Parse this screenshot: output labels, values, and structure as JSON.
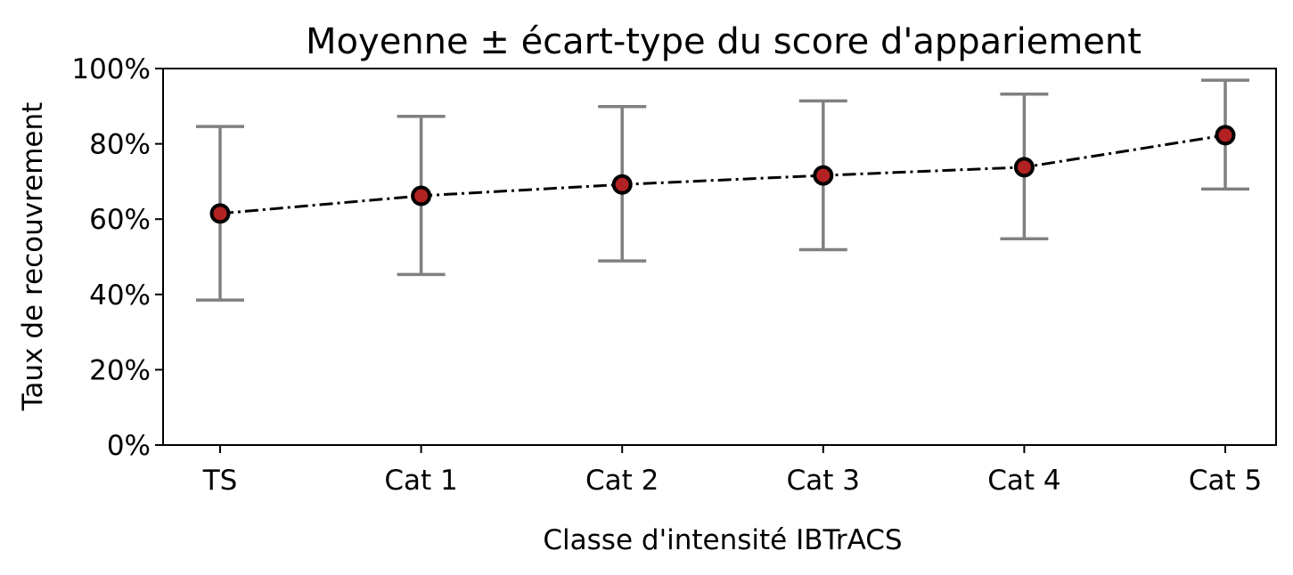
{
  "chart_data": {
    "type": "line",
    "title": "Moyenne ± écart-type du score d'appariement",
    "xlabel": "Classe d'intensité IBTrACS",
    "ylabel": "Taux de recouvrement",
    "categories": [
      "TS",
      "Cat 1",
      "Cat 2",
      "Cat 3",
      "Cat 4",
      "Cat 5"
    ],
    "series": [
      {
        "values": [
          0.615,
          0.662,
          0.692,
          0.716,
          0.738,
          0.823
        ],
        "error_lower": [
          0.385,
          0.453,
          0.489,
          0.519,
          0.548,
          0.68
        ],
        "error_upper": [
          0.846,
          0.873,
          0.899,
          0.914,
          0.932,
          0.969
        ]
      }
    ],
    "ylim": [
      0,
      1
    ],
    "yticks": [
      0,
      0.2,
      0.4,
      0.6,
      0.8,
      1.0
    ],
    "ytick_labels": [
      "0%",
      "20%",
      "40%",
      "60%",
      "80%",
      "100%"
    ],
    "grid": false,
    "line_style": "dash-dot",
    "line_color": "#000000",
    "marker_face_color": "#b22222",
    "marker_edge_color": "#000000",
    "errorbar_color": "#808080"
  }
}
